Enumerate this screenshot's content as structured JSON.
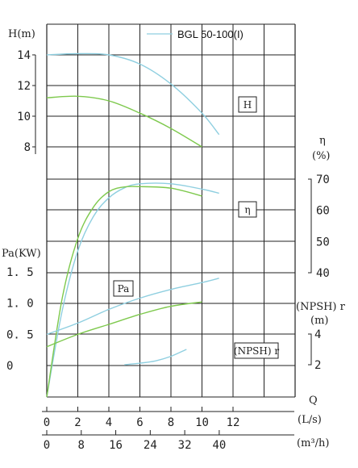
{
  "chart_data": {
    "type": "line",
    "legend": {
      "label": "BGL 50-100(I)",
      "placement": "top-right"
    },
    "colors": {
      "model_curve": "#8fcfe0",
      "reference_curve": "#7ec94d",
      "grid": "#222222"
    },
    "x_axes": [
      {
        "label": "Q",
        "unit": "(L/s)",
        "ticks": [
          0,
          2,
          4,
          6,
          8,
          10,
          12
        ]
      },
      {
        "unit": "(m³/h)",
        "ticks": [
          0,
          8,
          16,
          24,
          32,
          40
        ]
      }
    ],
    "head_axis": {
      "label": "H(m)",
      "ticks": [
        8,
        10,
        12,
        14
      ],
      "range": [
        8,
        14
      ]
    },
    "efficiency_axis": {
      "label": "η",
      "unit": "(%)",
      "ticks": [
        40,
        50,
        60,
        70
      ]
    },
    "power_axis": {
      "label": "Pa(KW)",
      "ticks": [
        0,
        0.5,
        1.0,
        1.5
      ],
      "tick_labels": [
        "0",
        "0. 5",
        "1. 0",
        "1. 5"
      ]
    },
    "npsh_axis": {
      "label": "(NPSH) r",
      "unit": "(m)",
      "ticks": [
        2,
        4
      ]
    },
    "curve_labels": {
      "head": "H",
      "efficiency": "η",
      "power": "Pa",
      "npsh": "(NPSH) r"
    },
    "series": [
      {
        "name": "BGL 50-100(I)",
        "curve": "head",
        "color": "#8fcfe0",
        "points": [
          [
            0,
            14.0
          ],
          [
            2,
            14.08
          ],
          [
            4,
            14.0
          ],
          [
            6,
            13.4
          ],
          [
            8,
            12.1
          ],
          [
            10,
            10.2
          ],
          [
            11.1,
            8.8
          ]
        ]
      },
      {
        "curve": "head",
        "color": "#7ec94d",
        "points": [
          [
            0,
            11.2
          ],
          [
            2,
            11.3
          ],
          [
            4,
            11.0
          ],
          [
            6,
            10.2
          ],
          [
            8,
            9.2
          ],
          [
            10,
            8.0
          ]
        ]
      },
      {
        "name": "BGL 50-100(I)",
        "curve": "efficiency",
        "color": "#8fcfe0",
        "points": [
          [
            0,
            0
          ],
          [
            1,
            28
          ],
          [
            2,
            47
          ],
          [
            3,
            58
          ],
          [
            4,
            64
          ],
          [
            5,
            67.2
          ],
          [
            6,
            68.5
          ],
          [
            8,
            68.5
          ],
          [
            10,
            66.8
          ],
          [
            11.1,
            65.5
          ]
        ]
      },
      {
        "curve": "efficiency",
        "color": "#7ec94d",
        "points": [
          [
            0,
            0
          ],
          [
            1,
            32
          ],
          [
            2,
            51
          ],
          [
            3,
            61
          ],
          [
            4,
            66
          ],
          [
            5,
            67.5
          ],
          [
            6,
            67.6
          ],
          [
            8,
            67.1
          ],
          [
            10,
            64.6
          ]
        ]
      },
      {
        "name": "BGL 50-100(I)",
        "curve": "power",
        "color": "#8fcfe0",
        "points": [
          [
            0,
            0.5
          ],
          [
            2,
            0.68
          ],
          [
            4,
            0.9
          ],
          [
            6,
            1.08
          ],
          [
            8,
            1.22
          ],
          [
            10,
            1.33
          ],
          [
            11.1,
            1.4
          ]
        ]
      },
      {
        "curve": "power",
        "color": "#7ec94d",
        "points": [
          [
            0,
            0.3
          ],
          [
            2,
            0.5
          ],
          [
            4,
            0.66
          ],
          [
            6,
            0.82
          ],
          [
            8,
            0.95
          ],
          [
            10,
            1.02
          ]
        ]
      },
      {
        "name": "BGL 50-100(I)",
        "curve": "npsh",
        "color": "#8fcfe0",
        "points": [
          [
            5,
            2.0
          ],
          [
            6,
            2.1
          ],
          [
            7,
            2.25
          ],
          [
            8,
            2.55
          ],
          [
            9,
            3.0
          ]
        ]
      }
    ]
  }
}
